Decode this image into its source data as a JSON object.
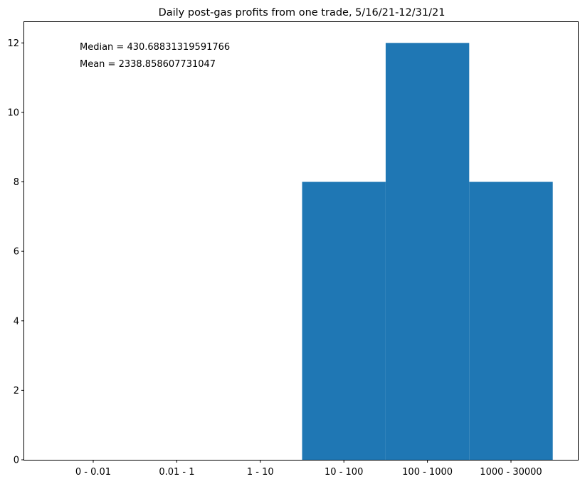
{
  "chart_data": {
    "type": "bar",
    "title": "Daily post-gas profits from one trade, 5/16/21-12/31/21",
    "xlabel": "",
    "ylabel": "",
    "categories": [
      "0 - 0.01",
      "0.01 - 1",
      "1 - 10",
      "10 - 100",
      "100 - 1000",
      "1000 - 30000"
    ],
    "values": [
      0,
      0,
      0,
      8,
      12,
      8
    ],
    "ylim": [
      0,
      12.6
    ],
    "yticks": [
      0,
      2,
      4,
      6,
      8,
      10,
      12
    ],
    "bar_color": "#1f77b4",
    "grid": false,
    "annotations": [
      "Median = 430.68831319591766",
      "Mean = 2338.858607731047"
    ]
  }
}
